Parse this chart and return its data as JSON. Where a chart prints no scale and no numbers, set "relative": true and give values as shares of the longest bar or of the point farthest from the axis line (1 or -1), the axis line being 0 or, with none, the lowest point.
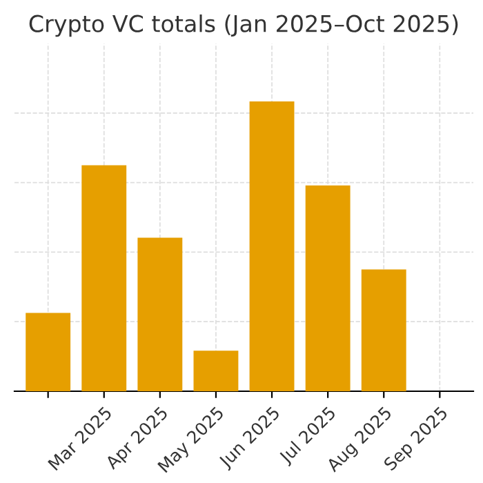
{
  "chart_data": {
    "type": "bar",
    "title": "Crypto VC totals (Jan 2025–Oct 2025)",
    "categories": [
      null,
      "Mar 2025",
      "Apr 2025",
      "May 2025",
      "Jun 2025",
      "Jul 2025",
      "Aug 2025",
      "Sep 2025"
    ],
    "values": [
      0.27,
      0.78,
      0.53,
      0.14,
      1,
      0.71,
      0.42,
      null
    ],
    "color": "#e69f00",
    "relative": true,
    "grid": true
  }
}
